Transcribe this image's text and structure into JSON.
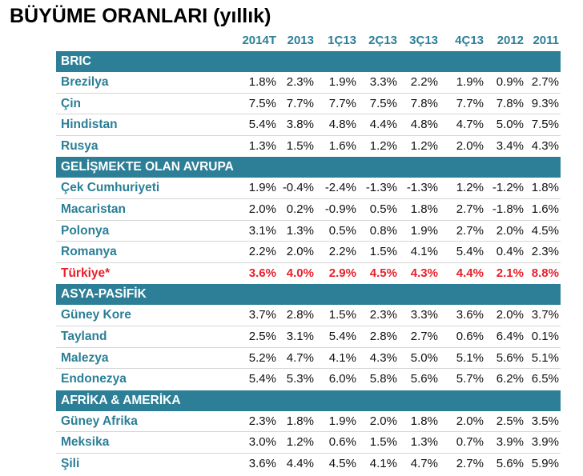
{
  "title": "BÜYÜME ORANLARI (yıllık)",
  "columns": [
    "2014T",
    "2013",
    "1Ç13",
    "2Ç13",
    "3Ç13",
    "4Ç13",
    "2012",
    "2011"
  ],
  "colors": {
    "band": "#2c7f96",
    "label": "#2a7f96",
    "highlight": "#e8202a"
  },
  "groups": [
    {
      "label": "BRIC",
      "rows": [
        {
          "name": "Brezilya",
          "values": [
            "1.8%",
            "2.3%",
            "1.9%",
            "3.3%",
            "2.2%",
            "1.9%",
            "0.9%",
            "2.7%"
          ]
        },
        {
          "name": "Çin",
          "values": [
            "7.5%",
            "7.7%",
            "7.7%",
            "7.5%",
            "7.8%",
            "7.7%",
            "7.8%",
            "9.3%"
          ]
        },
        {
          "name": "Hindistan",
          "values": [
            "5.4%",
            "3.8%",
            "4.8%",
            "4.4%",
            "4.8%",
            "4.7%",
            "5.0%",
            "7.5%"
          ]
        },
        {
          "name": "Rusya",
          "values": [
            "1.3%",
            "1.5%",
            "1.6%",
            "1.2%",
            "1.2%",
            "2.0%",
            "3.4%",
            "4.3%"
          ]
        }
      ]
    },
    {
      "label": "GELİŞMEKTE OLAN AVRUPA",
      "rows": [
        {
          "name": "Çek Cumhuriyeti",
          "values": [
            "1.9%",
            "-0.4%",
            "-2.4%",
            "-1.3%",
            "-1.3%",
            "1.2%",
            "-1.2%",
            "1.8%"
          ]
        },
        {
          "name": "Macaristan",
          "values": [
            "2.0%",
            "0.2%",
            "-0.9%",
            "0.5%",
            "1.8%",
            "2.7%",
            "-1.8%",
            "1.6%"
          ]
        },
        {
          "name": "Polonya",
          "values": [
            "3.1%",
            "1.3%",
            "0.5%",
            "0.8%",
            "1.9%",
            "2.7%",
            "2.0%",
            "4.5%"
          ]
        },
        {
          "name": "Romanya",
          "values": [
            "2.2%",
            "2.0%",
            "2.2%",
            "1.5%",
            "4.1%",
            "5.4%",
            "0.4%",
            "2.3%"
          ]
        },
        {
          "name": "Türkiye*",
          "highlight": true,
          "values": [
            "3.6%",
            "4.0%",
            "2.9%",
            "4.5%",
            "4.3%",
            "4.4%",
            "2.1%",
            "8.8%"
          ]
        }
      ]
    },
    {
      "label": "ASYA-PASİFİK",
      "rows": [
        {
          "name": "Güney Kore",
          "values": [
            "3.7%",
            "2.8%",
            "1.5%",
            "2.3%",
            "3.3%",
            "3.6%",
            "2.0%",
            "3.7%"
          ]
        },
        {
          "name": "Tayland",
          "values": [
            "2.5%",
            "3.1%",
            "5.4%",
            "2.8%",
            "2.7%",
            "0.6%",
            "6.4%",
            "0.1%"
          ]
        },
        {
          "name": "Malezya",
          "values": [
            "5.2%",
            "4.7%",
            "4.1%",
            "4.3%",
            "5.0%",
            "5.1%",
            "5.6%",
            "5.1%"
          ]
        },
        {
          "name": "Endonezya",
          "values": [
            "5.4%",
            "5.3%",
            "6.0%",
            "5.8%",
            "5.6%",
            "5.7%",
            "6.2%",
            "6.5%"
          ]
        }
      ]
    },
    {
      "label": "AFRİKA & AMERİKA",
      "rows": [
        {
          "name": "Güney Afrika",
          "values": [
            "2.3%",
            "1.8%",
            "1.9%",
            "2.0%",
            "1.8%",
            "2.0%",
            "2.5%",
            "3.5%"
          ]
        },
        {
          "name": "Meksika",
          "values": [
            "3.0%",
            "1.2%",
            "0.6%",
            "1.5%",
            "1.3%",
            "0.7%",
            "3.9%",
            "3.9%"
          ]
        },
        {
          "name": "Şili",
          "values": [
            "3.6%",
            "4.4%",
            "4.5%",
            "4.1%",
            "4.7%",
            "2.7%",
            "5.6%",
            "5.9%"
          ]
        }
      ]
    }
  ]
}
